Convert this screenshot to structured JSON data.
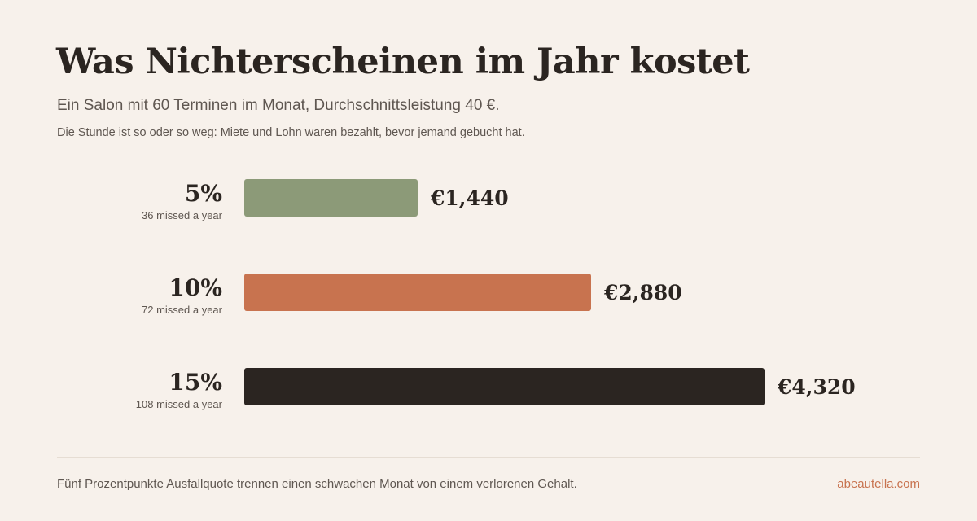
{
  "header": {
    "title": "Was Nichterscheinen im Jahr kostet",
    "subtitle": "Ein Salon mit 60 Terminen im Monat, Durchschnittsleistung 40 €.",
    "note": "Die Stunde ist so oder so weg: Miete und Lohn waren bezahlt, bevor jemand gebucht hat."
  },
  "chart_data": {
    "type": "bar",
    "orientation": "horizontal",
    "categories": [
      "5%",
      "10%",
      "15%"
    ],
    "sublabels": [
      "36 missed a year",
      "72 missed a year",
      "108 missed a year"
    ],
    "values": [
      1440,
      2880,
      4320
    ],
    "value_labels": [
      "€1,440",
      "€2,880",
      "€4,320"
    ],
    "colors": [
      "#8c9a78",
      "#c8734f",
      "#2b2521"
    ],
    "title": "",
    "xlabel": "",
    "ylabel": "",
    "xlim": [
      0,
      4320
    ],
    "grid": false,
    "legend": "none"
  },
  "footer": {
    "text": "Fünf Prozentpunkte Ausfallquote trennen einen schwachen Monat von einem verlorenen Gehalt.",
    "link": "abeautella.com"
  }
}
